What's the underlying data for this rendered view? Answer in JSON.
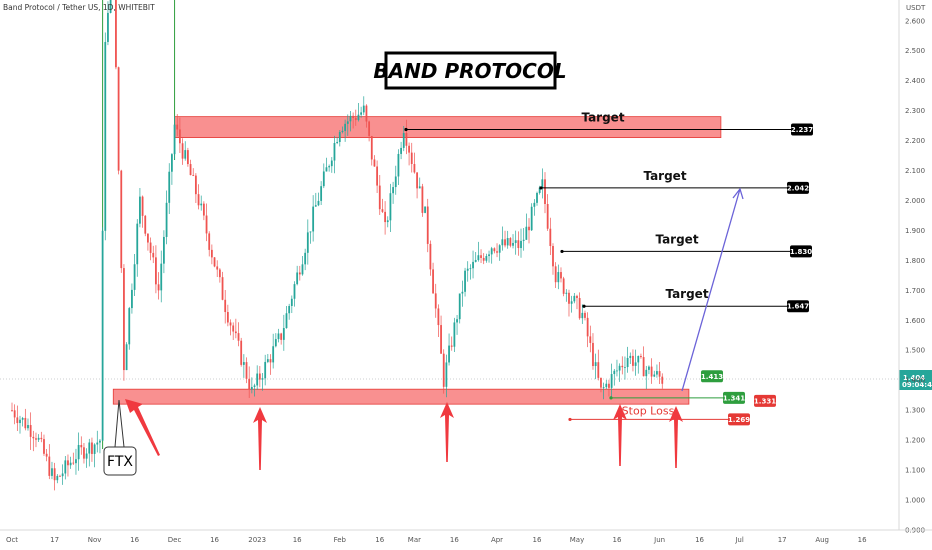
{
  "header": {
    "symbol_text": "Band Protocol / Tether US, 1D, WHITEBIT"
  },
  "chart_data": {
    "type": "candlestick",
    "title": "BAND PROTOCOL",
    "y_axis": {
      "unit_label": "USDT",
      "range": [
        0.9,
        2.7
      ],
      "ticks": [
        "0.900",
        "1.000",
        "1.100",
        "1.200",
        "1.300",
        "1.400",
        "1.500",
        "1.600",
        "1.700",
        "1.800",
        "1.900",
        "2.000",
        "2.100",
        "2.200",
        "2.300",
        "2.400",
        "2.500",
        "2.600"
      ]
    },
    "x_axis": {
      "ticks": [
        "Oct",
        "17",
        "Nov",
        "16",
        "Dec",
        "16",
        "2023",
        "16",
        "Feb",
        "16",
        "Mar",
        "16",
        "Apr",
        "16",
        "May",
        "16",
        "Jun",
        "16",
        "Jul",
        "17",
        "Aug",
        "16"
      ]
    },
    "price_key_points": [
      {
        "t": "2022-10-01",
        "p": 1.3
      },
      {
        "t": "2022-10-10",
        "p": 1.22
      },
      {
        "t": "2022-10-17",
        "p": 1.06
      },
      {
        "t": "2022-10-25",
        "p": 1.15
      },
      {
        "t": "2022-11-03",
        "p": 1.2
      },
      {
        "t": "2022-11-05",
        "p": 2.55
      },
      {
        "t": "2022-11-08",
        "p": 2.75
      },
      {
        "t": "2022-11-12",
        "p": 1.45
      },
      {
        "t": "2022-11-18",
        "p": 2.0
      },
      {
        "t": "2022-11-25",
        "p": 1.7
      },
      {
        "t": "2022-12-01",
        "p": 2.25
      },
      {
        "t": "2022-12-10",
        "p": 2.0
      },
      {
        "t": "2022-12-20",
        "p": 1.65
      },
      {
        "t": "2022-12-30",
        "p": 1.36
      },
      {
        "t": "2023-01-10",
        "p": 1.55
      },
      {
        "t": "2023-01-22",
        "p": 1.95
      },
      {
        "t": "2023-02-01",
        "p": 2.25
      },
      {
        "t": "2023-02-10",
        "p": 2.3
      },
      {
        "t": "2023-02-18",
        "p": 1.9
      },
      {
        "t": "2023-02-25",
        "p": 2.25
      },
      {
        "t": "2023-03-05",
        "p": 1.95
      },
      {
        "t": "2023-03-12",
        "p": 1.4
      },
      {
        "t": "2023-03-20",
        "p": 1.75
      },
      {
        "t": "2023-03-30",
        "p": 1.85
      },
      {
        "t": "2023-04-10",
        "p": 1.85
      },
      {
        "t": "2023-04-18",
        "p": 2.05
      },
      {
        "t": "2023-04-23",
        "p": 1.75
      },
      {
        "t": "2023-05-03",
        "p": 1.62
      },
      {
        "t": "2023-05-10",
        "p": 1.36
      },
      {
        "t": "2023-05-20",
        "p": 1.48
      },
      {
        "t": "2023-05-28",
        "p": 1.43
      },
      {
        "t": "2023-06-02",
        "p": 1.404
      }
    ],
    "last_price": "1.404",
    "countdown": "09:04:43",
    "zones": [
      {
        "name": "resistance",
        "from": 2.21,
        "to": 2.28,
        "start": "2022-12-01",
        "end": "2023-06-24"
      },
      {
        "name": "support",
        "from": 1.32,
        "to": 1.37,
        "start": "2022-11-08",
        "end": "2023-06-12"
      }
    ],
    "levels": [
      {
        "label": "Target",
        "value": "2.237",
        "color": "#000000"
      },
      {
        "label": "Target",
        "value": "2.042",
        "color": "#000000"
      },
      {
        "label": "Target",
        "value": "1.830",
        "color": "#000000"
      },
      {
        "label": "Target",
        "value": "1.647",
        "color": "#000000"
      },
      {
        "label": "",
        "value": "1.413",
        "color": "#2e9e3e"
      },
      {
        "label": "",
        "value": "1.341",
        "color": "#2e9e3e"
      },
      {
        "label": "",
        "value": "1.331",
        "color": "#e53935"
      },
      {
        "label": "Stop Loss",
        "value": "1.269",
        "color": "#e53935"
      }
    ],
    "annotations": {
      "event_label": "FTX"
    }
  },
  "colors": {
    "up": "#26a69a",
    "down": "#ef5350",
    "zone_fill": "#f87c7c",
    "zone_stroke": "#e53935",
    "projection": "#6b63d8"
  },
  "icons": {
    "arrow": "red-up-arrow-icon"
  }
}
